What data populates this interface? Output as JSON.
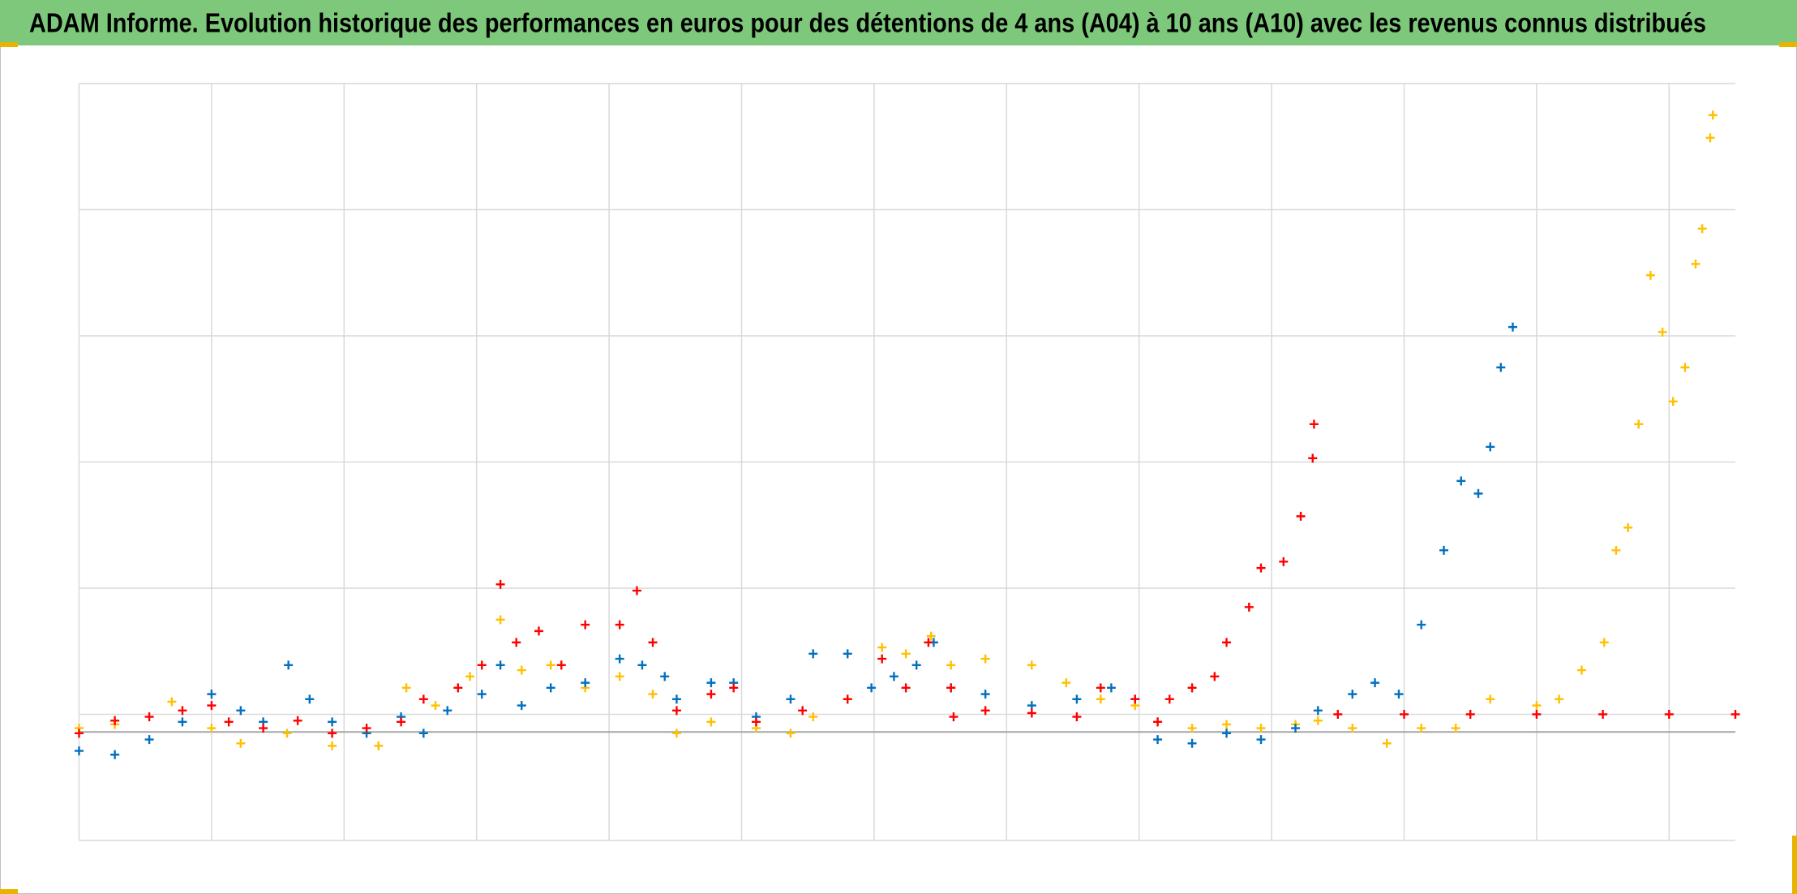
{
  "chart_data": {
    "type": "scatter",
    "title": "ADAM Informe. Evolution historique des performances en euros pour des détentions de 4 ans (A04) à 10 ans (A10) avec les revenus connus distribués",
    "xlim": [
      0,
      12.5
    ],
    "xticks": [
      0,
      1,
      2,
      3,
      4,
      5,
      6,
      7,
      8,
      9,
      10,
      11,
      12
    ],
    "ylim": [
      0,
      6
    ],
    "yticks": [
      0,
      1,
      2,
      3,
      4,
      5,
      6
    ],
    "axis_line": 0.86,
    "grid": true,
    "series": [
      {
        "color": "#ffc000",
        "x": [
          0,
          0.27,
          0.7,
          1.0,
          1.22,
          1.57,
          1.91,
          2.26,
          2.47,
          2.69,
          2.95,
          3.18,
          3.34,
          3.56,
          3.82,
          4.08,
          4.33,
          4.51,
          4.77,
          5.11,
          5.37,
          5.54,
          5.8,
          6.06,
          6.24,
          6.43,
          6.58,
          6.84,
          7.19,
          7.45,
          7.71,
          7.97,
          8.14,
          8.4,
          8.66,
          8.92,
          9.18,
          9.35,
          9.61,
          9.87,
          10.13,
          10.39,
          10.65,
          11.0,
          11.17,
          11.34,
          11.51,
          11.6,
          11.69,
          11.77,
          11.86,
          11.95,
          12.03,
          12.12,
          12.2,
          12.25,
          12.31,
          12.33
        ],
        "values": [
          0.89,
          0.92,
          1.1,
          0.89,
          0.77,
          0.85,
          0.75,
          0.75,
          1.21,
          1.07,
          1.3,
          1.75,
          1.35,
          1.39,
          1.21,
          1.3,
          1.16,
          0.85,
          0.94,
          0.89,
          0.85,
          0.98,
          1.12,
          1.53,
          1.48,
          1.62,
          1.39,
          1.44,
          1.39,
          1.25,
          1.12,
          1.07,
          0.94,
          0.89,
          0.92,
          0.89,
          0.92,
          0.95,
          0.89,
          0.77,
          0.89,
          0.89,
          1.12,
          1.07,
          1.12,
          1.35,
          1.57,
          2.3,
          2.48,
          3.3,
          4.48,
          4.03,
          3.48,
          3.75,
          4.57,
          4.85,
          5.57,
          5.75
        ]
      },
      {
        "color": "#0070c0",
        "x": [
          0,
          0.27,
          0.53,
          0.78,
          1.0,
          1.22,
          1.39,
          1.58,
          1.74,
          1.91,
          2.17,
          2.43,
          2.6,
          2.78,
          3.04,
          3.18,
          3.34,
          3.56,
          3.82,
          4.08,
          4.25,
          4.42,
          4.51,
          4.77,
          4.94,
          5.11,
          5.37,
          5.54,
          5.8,
          5.98,
          6.15,
          6.32,
          6.45,
          6.58,
          6.84,
          7.19,
          7.53,
          7.79,
          7.97,
          8.14,
          8.4,
          8.66,
          8.92,
          9.18,
          9.35,
          9.61,
          9.78,
          9.96,
          10.13,
          10.3,
          10.43,
          10.56,
          10.65,
          10.73,
          10.82
        ],
        "values": [
          0.71,
          0.68,
          0.8,
          0.94,
          1.16,
          1.03,
          0.94,
          1.39,
          1.12,
          0.94,
          0.85,
          0.98,
          0.85,
          1.03,
          1.16,
          1.39,
          1.07,
          1.21,
          1.25,
          1.44,
          1.39,
          1.3,
          1.12,
          1.25,
          1.25,
          0.98,
          1.12,
          1.48,
          1.48,
          1.21,
          1.3,
          1.39,
          1.57,
          1.21,
          1.16,
          1.07,
          1.12,
          1.21,
          1.12,
          0.8,
          0.77,
          0.85,
          0.8,
          0.89,
          1.03,
          1.16,
          1.25,
          1.16,
          1.71,
          2.3,
          2.85,
          2.75,
          3.12,
          3.75,
          4.07
        ]
      },
      {
        "color": "#ff0000",
        "x": [
          0,
          0.27,
          0.53,
          0.78,
          1.0,
          1.13,
          1.39,
          1.65,
          1.91,
          2.17,
          2.43,
          2.6,
          2.86,
          3.04,
          3.18,
          3.3,
          3.47,
          3.64,
          3.82,
          4.08,
          4.21,
          4.33,
          4.51,
          4.77,
          4.94,
          5.11,
          5.46,
          5.8,
          6.06,
          6.24,
          6.41,
          6.58,
          6.6,
          6.84,
          7.19,
          7.53,
          7.71,
          7.97,
          8.14,
          8.23,
          8.4,
          8.57,
          8.66,
          8.83,
          8.92,
          9.09,
          9.22,
          9.31,
          9.32,
          9.5,
          10,
          10.5,
          11,
          11.5,
          12,
          12.5
        ],
        "values": [
          0.85,
          0.95,
          0.98,
          1.03,
          1.07,
          0.94,
          0.89,
          0.95,
          0.85,
          0.89,
          0.94,
          1.12,
          1.21,
          1.39,
          2.03,
          1.57,
          1.66,
          1.39,
          1.71,
          1.71,
          1.98,
          1.57,
          1.03,
          1.16,
          1.21,
          0.94,
          1.03,
          1.12,
          1.44,
          1.21,
          1.57,
          1.21,
          0.98,
          1.03,
          1.01,
          0.98,
          1.21,
          1.12,
          0.94,
          1.12,
          1.21,
          1.3,
          1.57,
          1.85,
          2.16,
          2.21,
          2.57,
          3.03,
          3.3,
          1.0,
          1.0,
          1.0,
          1.0,
          1.0,
          1.0,
          1.0
        ]
      }
    ]
  }
}
